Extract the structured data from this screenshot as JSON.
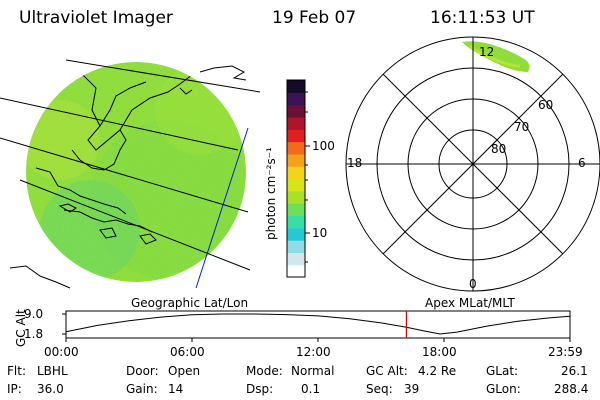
{
  "header": {
    "instrument": "Ultraviolet Imager",
    "date": "19 Feb 07",
    "time": "16:11:53 UT"
  },
  "colorbar": {
    "label": "photon cm⁻²s⁻¹",
    "ticks": [
      "100",
      "10"
    ],
    "colors": [
      "#ffffff",
      "#cfe8ec",
      "#8fdde4",
      "#27c8d6",
      "#36dfa5",
      "#6ce05a",
      "#a8e02c",
      "#d6e41a",
      "#f2d41a",
      "#f6a11a",
      "#f36a1a",
      "#e02020",
      "#b0142a",
      "#6a1036",
      "#3a1454",
      "#160a2a"
    ]
  },
  "polar": {
    "mlt_labels": {
      "top": "12",
      "left": "18",
      "right": "6",
      "bottom": "0"
    },
    "lat_labels": [
      "60",
      "70",
      "80"
    ]
  },
  "timeline": {
    "left_title": "Geographic Lat/Lon",
    "right_title": "Apex MLat/MLT",
    "ylabel": "GC Alt",
    "y_ticks": [
      "9.0",
      "1.8"
    ],
    "x_ticks": [
      "00:00",
      "06:00",
      "12:00",
      "18:00",
      "23:59"
    ],
    "marker_color": "#dd0000",
    "altitude_curve": [
      {
        "t": 0.0,
        "alt": 2.6
      },
      {
        "t": 1.5,
        "alt": 4.9
      },
      {
        "t": 3.0,
        "alt": 6.6
      },
      {
        "t": 4.5,
        "alt": 7.9
      },
      {
        "t": 6.0,
        "alt": 8.7
      },
      {
        "t": 7.5,
        "alt": 9.0
      },
      {
        "t": 9.0,
        "alt": 9.0
      },
      {
        "t": 10.5,
        "alt": 8.8
      },
      {
        "t": 12.0,
        "alt": 8.3
      },
      {
        "t": 13.5,
        "alt": 7.3
      },
      {
        "t": 15.0,
        "alt": 5.8
      },
      {
        "t": 16.2,
        "alt": 4.2
      },
      {
        "t": 17.0,
        "alt": 3.0
      },
      {
        "t": 17.8,
        "alt": 1.8
      },
      {
        "t": 18.6,
        "alt": 2.5
      },
      {
        "t": 20.0,
        "alt": 4.6
      },
      {
        "t": 21.5,
        "alt": 6.4
      },
      {
        "t": 23.0,
        "alt": 7.6
      },
      {
        "t": 23.98,
        "alt": 8.2
      }
    ],
    "marker_time": 16.2
  },
  "info": {
    "flt_label": "Flt:",
    "flt_value": "LBHL",
    "ip_label": "IP:",
    "ip_value": "36.0",
    "door_label": "Door:",
    "door_value": "Open",
    "gain_label": "Gain:",
    "gain_value": "14",
    "mode_label": "Mode:",
    "mode_value": "Normal",
    "dsp_label": "Dsp:",
    "dsp_value": "0.1",
    "gcalt_label": "GC Alt:",
    "gcalt_value": "4.2 Re",
    "seq_label": "Seq:",
    "seq_value": "39",
    "glat_label": "GLat:",
    "glat_value": "26.1",
    "glon_label": "GLon:",
    "glon_value": "288.4"
  }
}
